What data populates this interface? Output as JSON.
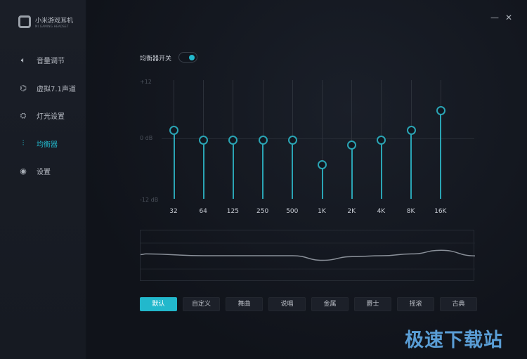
{
  "app": {
    "title": "小米游戏耳机",
    "subtitle": "MI GAMING HEADSET"
  },
  "sidebar": {
    "items": [
      {
        "label": "音量调节",
        "icon": "speaker-icon",
        "glyph": "🔈︎"
      },
      {
        "label": "虚拟7.1声道",
        "icon": "surround-icon",
        "glyph": "⌬"
      },
      {
        "label": "灯光设置",
        "icon": "light-icon",
        "glyph": "⛭"
      },
      {
        "label": "均衡器",
        "icon": "equalizer-icon",
        "glyph": "⫶",
        "active": true
      },
      {
        "label": "设置",
        "icon": "settings-icon",
        "glyph": "◉"
      }
    ]
  },
  "window": {
    "minimize": "—",
    "close": "✕"
  },
  "equalizer": {
    "switch_label": "均衡器开关",
    "enabled": true,
    "y_labels": {
      "top": "+12",
      "mid": "0 dB",
      "bottom": "-12 dB"
    },
    "accent": "#22b8cc"
  },
  "chart_data": {
    "type": "bar",
    "categories": [
      "32",
      "64",
      "125",
      "250",
      "500",
      "1K",
      "2K",
      "4K",
      "8K",
      "16K"
    ],
    "values": [
      2,
      0,
      0,
      0,
      0,
      -5,
      -1,
      0,
      2,
      6
    ],
    "ylim": [
      -12,
      12
    ],
    "ylabel": ""
  },
  "presets": [
    {
      "label": "默认",
      "active": true
    },
    {
      "label": "自定义"
    },
    {
      "label": "舞曲"
    },
    {
      "label": "说唱"
    },
    {
      "label": "金属"
    },
    {
      "label": "爵士"
    },
    {
      "label": "摇滚"
    },
    {
      "label": "古典"
    }
  ],
  "watermark": "极速下载站"
}
